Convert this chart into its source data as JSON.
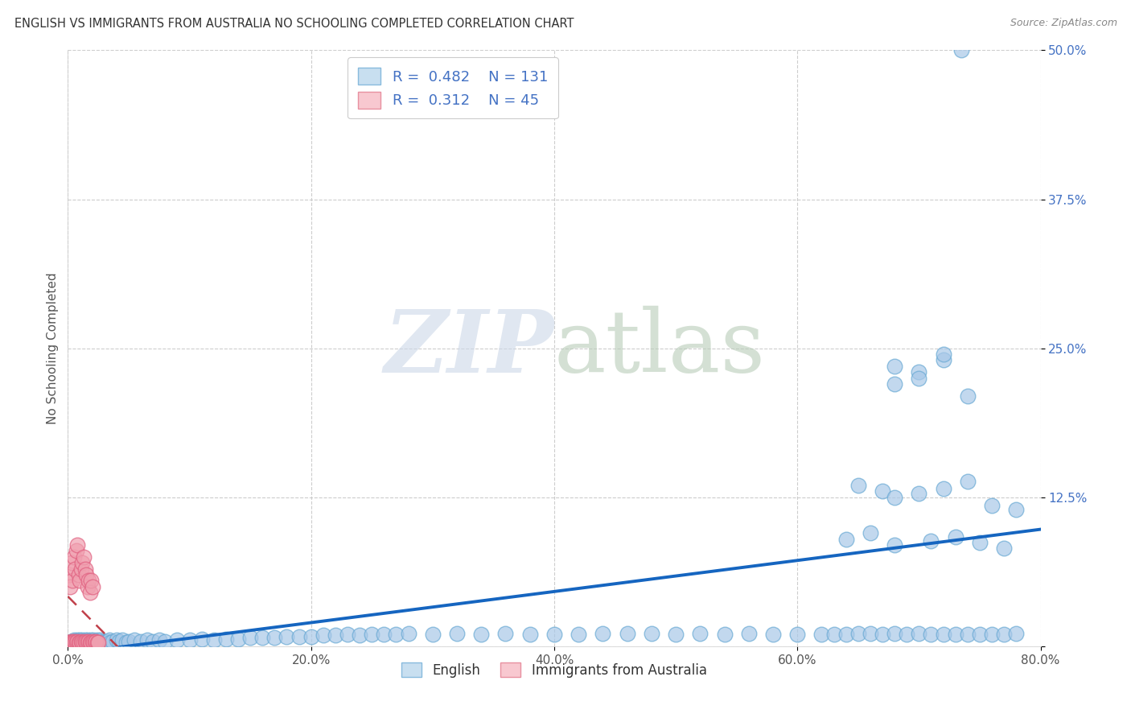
{
  "title": "ENGLISH VS IMMIGRANTS FROM AUSTRALIA NO SCHOOLING COMPLETED CORRELATION CHART",
  "source": "Source: ZipAtlas.com",
  "ylabel": "No Schooling Completed",
  "legend_labels": [
    "English",
    "Immigrants from Australia"
  ],
  "r_english": 0.482,
  "n_english": 131,
  "r_immig": 0.312,
  "n_immig": 45,
  "blue_color": "#a8c8e8",
  "pink_color": "#f0a0b0",
  "blue_edge_color": "#6aaad4",
  "pink_edge_color": "#e06080",
  "blue_line_color": "#1565c0",
  "pink_line_color": "#c0404a",
  "grid_color": "#c8c8c8",
  "background_color": "#ffffff",
  "xlim": [
    0.0,
    0.8
  ],
  "ylim": [
    0.0,
    0.5
  ],
  "xticks": [
    0.0,
    0.2,
    0.4,
    0.6,
    0.8
  ],
  "yticks": [
    0.0,
    0.125,
    0.25,
    0.375,
    0.5
  ],
  "english_x": [
    0.001,
    0.002,
    0.003,
    0.004,
    0.005,
    0.005,
    0.006,
    0.007,
    0.008,
    0.008,
    0.009,
    0.009,
    0.01,
    0.01,
    0.011,
    0.011,
    0.012,
    0.012,
    0.013,
    0.013,
    0.014,
    0.014,
    0.015,
    0.015,
    0.016,
    0.016,
    0.017,
    0.018,
    0.019,
    0.02,
    0.021,
    0.022,
    0.023,
    0.024,
    0.025,
    0.026,
    0.027,
    0.028,
    0.029,
    0.03,
    0.032,
    0.034,
    0.035,
    0.037,
    0.04,
    0.042,
    0.045,
    0.048,
    0.05,
    0.055,
    0.06,
    0.065,
    0.07,
    0.075,
    0.08,
    0.09,
    0.1,
    0.11,
    0.12,
    0.13,
    0.14,
    0.15,
    0.16,
    0.17,
    0.18,
    0.19,
    0.2,
    0.21,
    0.22,
    0.23,
    0.24,
    0.25,
    0.26,
    0.27,
    0.28,
    0.3,
    0.32,
    0.34,
    0.36,
    0.38,
    0.4,
    0.42,
    0.44,
    0.46,
    0.48,
    0.5,
    0.52,
    0.54,
    0.56,
    0.58,
    0.6,
    0.62,
    0.63,
    0.64,
    0.65,
    0.66,
    0.67,
    0.68,
    0.69,
    0.7,
    0.71,
    0.72,
    0.73,
    0.74,
    0.75,
    0.76,
    0.77,
    0.78,
    0.65,
    0.67,
    0.68,
    0.7,
    0.72,
    0.74,
    0.76,
    0.78,
    0.68,
    0.7,
    0.72,
    0.74,
    0.68,
    0.7,
    0.72,
    0.64,
    0.66,
    0.68,
    0.71,
    0.73,
    0.75,
    0.77,
    0.735
  ],
  "english_y": [
    0.003,
    0.002,
    0.004,
    0.003,
    0.005,
    0.002,
    0.004,
    0.003,
    0.005,
    0.002,
    0.004,
    0.003,
    0.005,
    0.002,
    0.004,
    0.003,
    0.005,
    0.002,
    0.004,
    0.003,
    0.005,
    0.002,
    0.004,
    0.003,
    0.005,
    0.002,
    0.004,
    0.003,
    0.005,
    0.004,
    0.005,
    0.003,
    0.004,
    0.005,
    0.003,
    0.004,
    0.005,
    0.003,
    0.004,
    0.003,
    0.004,
    0.005,
    0.003,
    0.004,
    0.005,
    0.004,
    0.005,
    0.003,
    0.004,
    0.005,
    0.004,
    0.005,
    0.004,
    0.005,
    0.004,
    0.005,
    0.005,
    0.006,
    0.005,
    0.006,
    0.006,
    0.007,
    0.007,
    0.007,
    0.008,
    0.008,
    0.008,
    0.009,
    0.009,
    0.01,
    0.009,
    0.01,
    0.01,
    0.01,
    0.011,
    0.01,
    0.011,
    0.01,
    0.011,
    0.01,
    0.01,
    0.01,
    0.011,
    0.011,
    0.011,
    0.01,
    0.011,
    0.01,
    0.011,
    0.01,
    0.01,
    0.01,
    0.01,
    0.01,
    0.011,
    0.011,
    0.01,
    0.011,
    0.01,
    0.011,
    0.01,
    0.01,
    0.01,
    0.01,
    0.01,
    0.01,
    0.01,
    0.011,
    0.135,
    0.13,
    0.125,
    0.128,
    0.132,
    0.138,
    0.118,
    0.115,
    0.22,
    0.23,
    0.24,
    0.21,
    0.235,
    0.225,
    0.245,
    0.09,
    0.095,
    0.085,
    0.088,
    0.092,
    0.087,
    0.082,
    0.5
  ],
  "immig_x": [
    0.001,
    0.002,
    0.003,
    0.004,
    0.005,
    0.006,
    0.007,
    0.008,
    0.009,
    0.01,
    0.011,
    0.012,
    0.013,
    0.014,
    0.015,
    0.016,
    0.017,
    0.018,
    0.019,
    0.02,
    0.021,
    0.022,
    0.023,
    0.024,
    0.025,
    0.001,
    0.002,
    0.003,
    0.004,
    0.005,
    0.006,
    0.007,
    0.008,
    0.009,
    0.01,
    0.011,
    0.012,
    0.013,
    0.014,
    0.015,
    0.016,
    0.017,
    0.018,
    0.019,
    0.02
  ],
  "immig_y": [
    0.003,
    0.003,
    0.004,
    0.003,
    0.004,
    0.003,
    0.003,
    0.004,
    0.003,
    0.003,
    0.004,
    0.003,
    0.003,
    0.004,
    0.003,
    0.003,
    0.004,
    0.003,
    0.003,
    0.004,
    0.003,
    0.003,
    0.004,
    0.003,
    0.003,
    0.06,
    0.05,
    0.07,
    0.055,
    0.075,
    0.065,
    0.08,
    0.085,
    0.06,
    0.055,
    0.065,
    0.07,
    0.075,
    0.065,
    0.06,
    0.05,
    0.055,
    0.045,
    0.055,
    0.05
  ]
}
